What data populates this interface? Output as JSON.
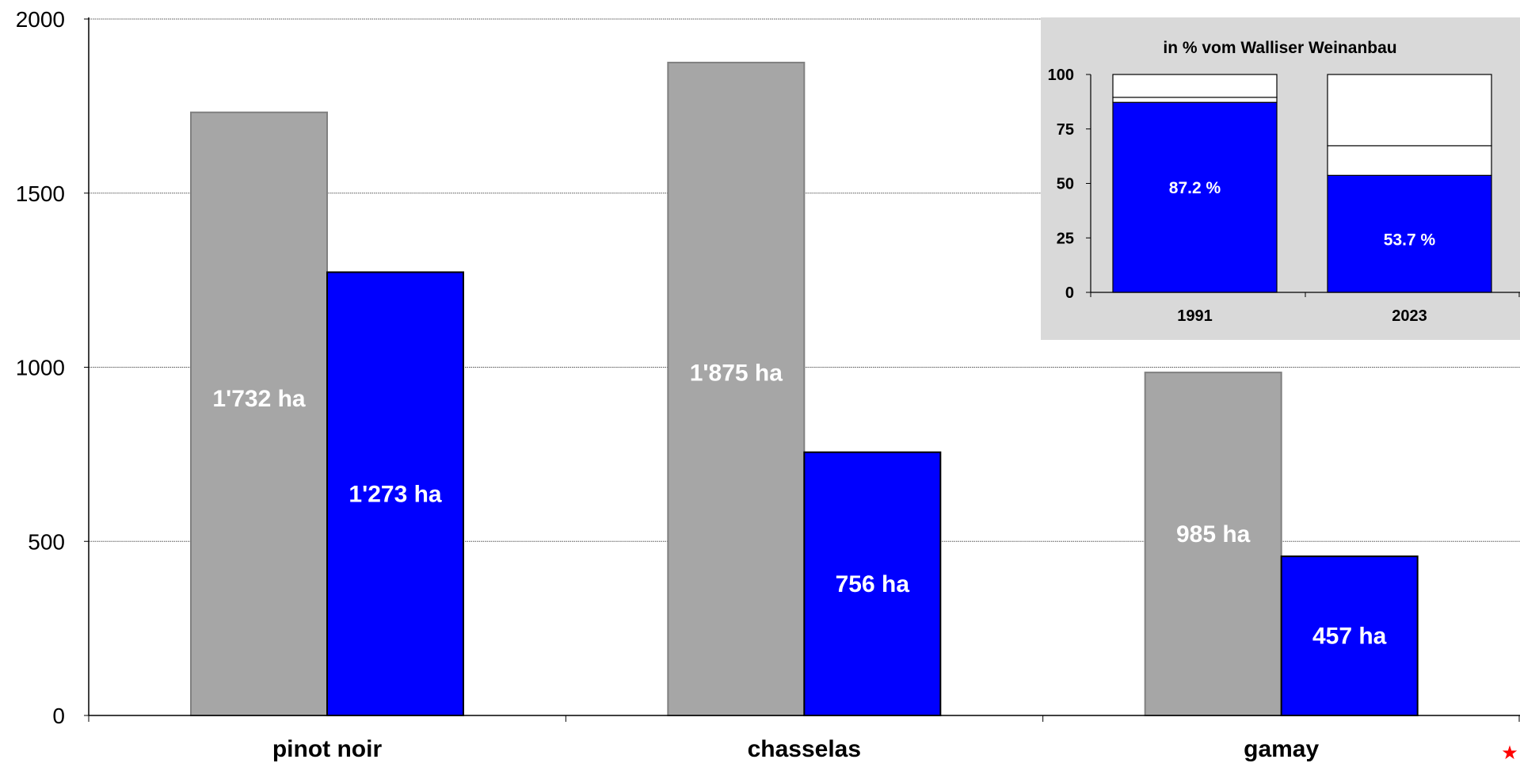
{
  "chart_data": [
    {
      "type": "bar",
      "categories": [
        "pinot noir",
        "chasselas",
        "gamay"
      ],
      "series": [
        {
          "values": [
            1732,
            1875,
            985
          ],
          "labels": [
            "1'732 ha",
            "1'875 ha",
            "985 ha"
          ],
          "color": "#a6a6a6"
        },
        {
          "values": [
            1273,
            756,
            457
          ],
          "labels": [
            "1'273 ha",
            "756 ha",
            "457 ha"
          ],
          "color": "#0000ff"
        }
      ],
      "yticks": [
        "0",
        "500",
        "1000",
        "1500",
        "2000"
      ],
      "ylim": [
        0,
        2000
      ],
      "grid": true,
      "legend": "none"
    },
    {
      "type": "bar",
      "stacked": true,
      "title": "in % vom Walliser Weinanbau",
      "categories": [
        "1991",
        "2023"
      ],
      "series": [
        {
          "values": [
            87.2,
            53.7
          ],
          "labels": [
            "87.2 %",
            "53.7 %"
          ],
          "color": "#0000ff"
        },
        {
          "values": [
            2.3,
            13.6
          ],
          "color": "#ffffff"
        },
        {
          "values": [
            10.5,
            32.7
          ],
          "color": "#ffffff"
        }
      ],
      "yticks": [
        "0",
        "25",
        "50",
        "75",
        "100"
      ],
      "ylim": [
        0,
        100
      ],
      "placement": "top-right",
      "background": "#d9d9d9"
    }
  ],
  "marker": {
    "symbol": "★",
    "color": "#ff0000"
  }
}
